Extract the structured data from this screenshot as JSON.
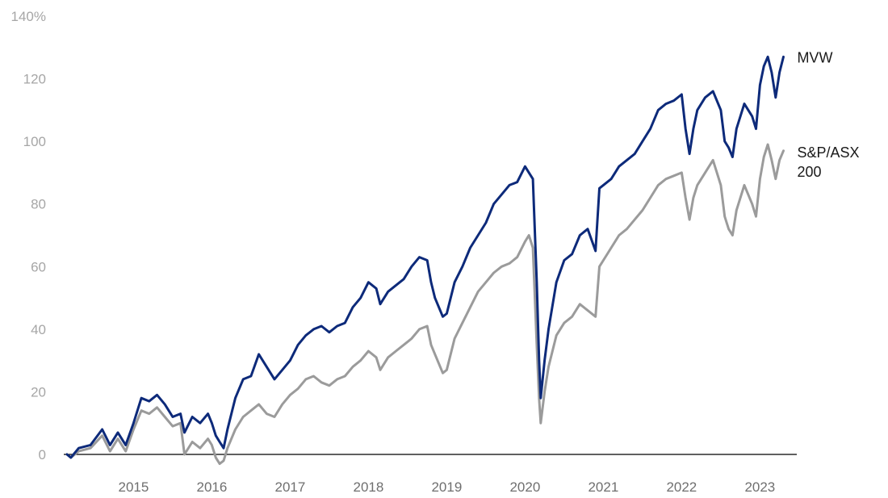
{
  "chart_data": {
    "type": "line",
    "title": "",
    "xlabel": "",
    "ylabel": "",
    "y_unit_suffix": "%",
    "ylim": [
      0,
      140
    ],
    "xlim": [
      2014.15,
      2023.45
    ],
    "y_ticks": [
      0,
      20,
      40,
      60,
      80,
      100,
      120,
      140
    ],
    "y_tick_labels": [
      "0",
      "20",
      "40",
      "60",
      "80",
      "100",
      "120",
      "140%"
    ],
    "x_ticks": [
      2015,
      2016,
      2017,
      2018,
      2019,
      2020,
      2021,
      2022,
      2023
    ],
    "x_tick_labels": [
      "2015",
      "2016",
      "2017",
      "2018",
      "2019",
      "2020",
      "2021",
      "2022",
      "2023"
    ],
    "grid": false,
    "legend": "inline-right",
    "series": [
      {
        "name": "MVW",
        "label": "MVW",
        "color": "#0d2a7a",
        "points": [
          [
            2014.15,
            0
          ],
          [
            2014.2,
            -1
          ],
          [
            2014.3,
            2
          ],
          [
            2014.45,
            3
          ],
          [
            2014.6,
            8
          ],
          [
            2014.7,
            3
          ],
          [
            2014.8,
            7
          ],
          [
            2014.9,
            3
          ],
          [
            2015.0,
            10
          ],
          [
            2015.1,
            18
          ],
          [
            2015.2,
            17
          ],
          [
            2015.3,
            19
          ],
          [
            2015.4,
            16
          ],
          [
            2015.5,
            12
          ],
          [
            2015.6,
            13
          ],
          [
            2015.65,
            7
          ],
          [
            2015.75,
            12
          ],
          [
            2015.85,
            10
          ],
          [
            2015.95,
            13
          ],
          [
            2016.0,
            10
          ],
          [
            2016.05,
            6
          ],
          [
            2016.1,
            4
          ],
          [
            2016.15,
            2
          ],
          [
            2016.2,
            8
          ],
          [
            2016.3,
            18
          ],
          [
            2016.4,
            24
          ],
          [
            2016.5,
            25
          ],
          [
            2016.6,
            32
          ],
          [
            2016.7,
            28
          ],
          [
            2016.8,
            24
          ],
          [
            2016.9,
            27
          ],
          [
            2017.0,
            30
          ],
          [
            2017.1,
            35
          ],
          [
            2017.2,
            38
          ],
          [
            2017.3,
            40
          ],
          [
            2017.4,
            41
          ],
          [
            2017.5,
            39
          ],
          [
            2017.6,
            41
          ],
          [
            2017.7,
            42
          ],
          [
            2017.8,
            47
          ],
          [
            2017.9,
            50
          ],
          [
            2018.0,
            55
          ],
          [
            2018.1,
            53
          ],
          [
            2018.15,
            48
          ],
          [
            2018.25,
            52
          ],
          [
            2018.35,
            54
          ],
          [
            2018.45,
            56
          ],
          [
            2018.55,
            60
          ],
          [
            2018.65,
            63
          ],
          [
            2018.75,
            62
          ],
          [
            2018.8,
            55
          ],
          [
            2018.85,
            50
          ],
          [
            2018.95,
            44
          ],
          [
            2019.0,
            45
          ],
          [
            2019.1,
            55
          ],
          [
            2019.2,
            60
          ],
          [
            2019.3,
            66
          ],
          [
            2019.4,
            70
          ],
          [
            2019.5,
            74
          ],
          [
            2019.6,
            80
          ],
          [
            2019.7,
            83
          ],
          [
            2019.8,
            86
          ],
          [
            2019.9,
            87
          ],
          [
            2020.0,
            92
          ],
          [
            2020.05,
            90
          ],
          [
            2020.1,
            88
          ],
          [
            2020.15,
            55
          ],
          [
            2020.18,
            30
          ],
          [
            2020.2,
            18
          ],
          [
            2020.25,
            30
          ],
          [
            2020.3,
            40
          ],
          [
            2020.4,
            55
          ],
          [
            2020.5,
            62
          ],
          [
            2020.6,
            64
          ],
          [
            2020.7,
            70
          ],
          [
            2020.8,
            72
          ],
          [
            2020.9,
            65
          ],
          [
            2020.95,
            85
          ],
          [
            2021.0,
            86
          ],
          [
            2021.1,
            88
          ],
          [
            2021.2,
            92
          ],
          [
            2021.3,
            94
          ],
          [
            2021.4,
            96
          ],
          [
            2021.5,
            100
          ],
          [
            2021.6,
            104
          ],
          [
            2021.7,
            110
          ],
          [
            2021.8,
            112
          ],
          [
            2021.9,
            113
          ],
          [
            2022.0,
            115
          ],
          [
            2022.05,
            104
          ],
          [
            2022.1,
            96
          ],
          [
            2022.15,
            104
          ],
          [
            2022.2,
            110
          ],
          [
            2022.3,
            114
          ],
          [
            2022.4,
            116
          ],
          [
            2022.5,
            110
          ],
          [
            2022.55,
            100
          ],
          [
            2022.6,
            98
          ],
          [
            2022.65,
            95
          ],
          [
            2022.7,
            104
          ],
          [
            2022.8,
            112
          ],
          [
            2022.9,
            108
          ],
          [
            2022.95,
            104
          ],
          [
            2023.0,
            118
          ],
          [
            2023.05,
            124
          ],
          [
            2023.1,
            127
          ],
          [
            2023.15,
            122
          ],
          [
            2023.2,
            114
          ],
          [
            2023.25,
            122
          ],
          [
            2023.3,
            127
          ]
        ]
      },
      {
        "name": "S&P/ASX 200",
        "label_lines": [
          "S&P/ASX",
          "200"
        ],
        "color": "#9b9b9b",
        "points": [
          [
            2014.15,
            0
          ],
          [
            2014.2,
            -1
          ],
          [
            2014.3,
            1
          ],
          [
            2014.45,
            2
          ],
          [
            2014.6,
            6
          ],
          [
            2014.7,
            1
          ],
          [
            2014.8,
            5
          ],
          [
            2014.9,
            1
          ],
          [
            2015.0,
            8
          ],
          [
            2015.1,
            14
          ],
          [
            2015.2,
            13
          ],
          [
            2015.3,
            15
          ],
          [
            2015.4,
            12
          ],
          [
            2015.5,
            9
          ],
          [
            2015.6,
            10
          ],
          [
            2015.65,
            0
          ],
          [
            2015.75,
            4
          ],
          [
            2015.85,
            2
          ],
          [
            2015.95,
            5
          ],
          [
            2016.0,
            3
          ],
          [
            2016.05,
            -1
          ],
          [
            2016.1,
            -3
          ],
          [
            2016.15,
            -2
          ],
          [
            2016.2,
            2
          ],
          [
            2016.3,
            8
          ],
          [
            2016.4,
            12
          ],
          [
            2016.5,
            14
          ],
          [
            2016.6,
            16
          ],
          [
            2016.7,
            13
          ],
          [
            2016.8,
            12
          ],
          [
            2016.9,
            16
          ],
          [
            2017.0,
            19
          ],
          [
            2017.1,
            21
          ],
          [
            2017.2,
            24
          ],
          [
            2017.3,
            25
          ],
          [
            2017.4,
            23
          ],
          [
            2017.5,
            22
          ],
          [
            2017.6,
            24
          ],
          [
            2017.7,
            25
          ],
          [
            2017.8,
            28
          ],
          [
            2017.9,
            30
          ],
          [
            2018.0,
            33
          ],
          [
            2018.1,
            31
          ],
          [
            2018.15,
            27
          ],
          [
            2018.25,
            31
          ],
          [
            2018.35,
            33
          ],
          [
            2018.45,
            35
          ],
          [
            2018.55,
            37
          ],
          [
            2018.65,
            40
          ],
          [
            2018.75,
            41
          ],
          [
            2018.8,
            35
          ],
          [
            2018.85,
            32
          ],
          [
            2018.95,
            26
          ],
          [
            2019.0,
            27
          ],
          [
            2019.1,
            37
          ],
          [
            2019.2,
            42
          ],
          [
            2019.3,
            47
          ],
          [
            2019.4,
            52
          ],
          [
            2019.5,
            55
          ],
          [
            2019.6,
            58
          ],
          [
            2019.7,
            60
          ],
          [
            2019.8,
            61
          ],
          [
            2019.9,
            63
          ],
          [
            2020.0,
            68
          ],
          [
            2020.05,
            70
          ],
          [
            2020.1,
            66
          ],
          [
            2020.15,
            35
          ],
          [
            2020.18,
            18
          ],
          [
            2020.2,
            10
          ],
          [
            2020.25,
            20
          ],
          [
            2020.3,
            28
          ],
          [
            2020.4,
            38
          ],
          [
            2020.5,
            42
          ],
          [
            2020.6,
            44
          ],
          [
            2020.7,
            48
          ],
          [
            2020.8,
            46
          ],
          [
            2020.9,
            44
          ],
          [
            2020.95,
            60
          ],
          [
            2021.0,
            62
          ],
          [
            2021.1,
            66
          ],
          [
            2021.2,
            70
          ],
          [
            2021.3,
            72
          ],
          [
            2021.4,
            75
          ],
          [
            2021.5,
            78
          ],
          [
            2021.6,
            82
          ],
          [
            2021.7,
            86
          ],
          [
            2021.8,
            88
          ],
          [
            2021.9,
            89
          ],
          [
            2022.0,
            90
          ],
          [
            2022.05,
            82
          ],
          [
            2022.1,
            75
          ],
          [
            2022.15,
            82
          ],
          [
            2022.2,
            86
          ],
          [
            2022.3,
            90
          ],
          [
            2022.4,
            94
          ],
          [
            2022.5,
            86
          ],
          [
            2022.55,
            76
          ],
          [
            2022.6,
            72
          ],
          [
            2022.65,
            70
          ],
          [
            2022.7,
            78
          ],
          [
            2022.8,
            86
          ],
          [
            2022.9,
            80
          ],
          [
            2022.95,
            76
          ],
          [
            2023.0,
            88
          ],
          [
            2023.05,
            95
          ],
          [
            2023.1,
            99
          ],
          [
            2023.15,
            94
          ],
          [
            2023.2,
            88
          ],
          [
            2023.25,
            94
          ],
          [
            2023.3,
            97
          ]
        ]
      }
    ]
  }
}
